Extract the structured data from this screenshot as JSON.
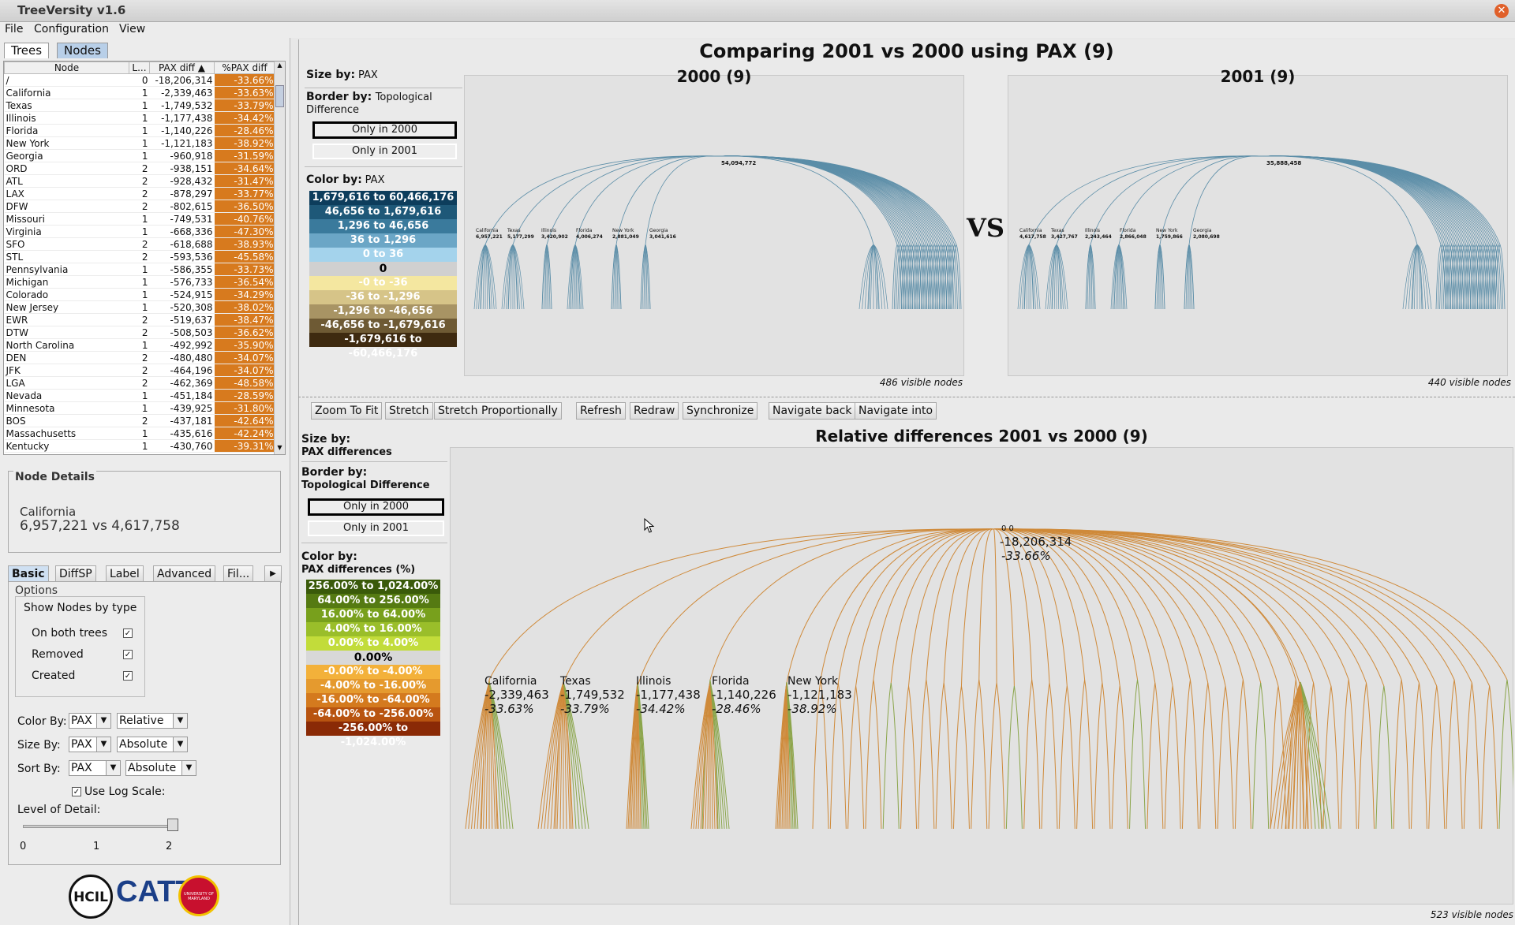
{
  "window": {
    "title": "TreeVersity v1.6"
  },
  "menu": [
    "File",
    "Configuration",
    "View"
  ],
  "left_tabs": [
    "Trees",
    "Nodes"
  ],
  "table": {
    "headers": [
      "Node",
      "L...",
      "PAX diff",
      "%PAX diff"
    ],
    "rows": [
      [
        "/",
        "0",
        "-18,206,314",
        "-33.66%"
      ],
      [
        "California",
        "1",
        "-2,339,463",
        "-33.63%"
      ],
      [
        "Texas",
        "1",
        "-1,749,532",
        "-33.79%"
      ],
      [
        "Illinois",
        "1",
        "-1,177,438",
        "-34.42%"
      ],
      [
        "Florida",
        "1",
        "-1,140,226",
        "-28.46%"
      ],
      [
        "New York",
        "1",
        "-1,121,183",
        "-38.92%"
      ],
      [
        "Georgia",
        "1",
        "-960,918",
        "-31.59%"
      ],
      [
        "ORD",
        "2",
        "-938,151",
        "-34.64%"
      ],
      [
        "ATL",
        "2",
        "-928,432",
        "-31.47%"
      ],
      [
        "LAX",
        "2",
        "-878,297",
        "-33.77%"
      ],
      [
        "DFW",
        "2",
        "-802,615",
        "-36.50%"
      ],
      [
        "Missouri",
        "1",
        "-749,531",
        "-40.76%"
      ],
      [
        "Virginia",
        "1",
        "-668,336",
        "-47.30%"
      ],
      [
        "SFO",
        "2",
        "-618,688",
        "-38.93%"
      ],
      [
        "STL",
        "2",
        "-593,536",
        "-45.58%"
      ],
      [
        "Pennsylvania",
        "1",
        "-586,355",
        "-33.73%"
      ],
      [
        "Michigan",
        "1",
        "-576,733",
        "-36.54%"
      ],
      [
        "Colorado",
        "1",
        "-524,915",
        "-34.29%"
      ],
      [
        "New Jersey",
        "1",
        "-520,308",
        "-38.02%"
      ],
      [
        "EWR",
        "2",
        "-519,637",
        "-38.47%"
      ],
      [
        "DTW",
        "2",
        "-508,503",
        "-36.62%"
      ],
      [
        "North Carolina",
        "1",
        "-492,992",
        "-35.90%"
      ],
      [
        "DEN",
        "2",
        "-480,480",
        "-34.07%"
      ],
      [
        "JFK",
        "2",
        "-464,196",
        "-34.07%"
      ],
      [
        "LGA",
        "2",
        "-462,369",
        "-48.58%"
      ],
      [
        "Nevada",
        "1",
        "-451,184",
        "-28.59%"
      ],
      [
        "Minnesota",
        "1",
        "-439,925",
        "-31.80%"
      ],
      [
        "BOS",
        "2",
        "-437,181",
        "-42.64%"
      ],
      [
        "Massachusetts",
        "1",
        "-435,616",
        "-42.24%"
      ],
      [
        "Kentucky",
        "1",
        "-430,760",
        "-39.31%"
      ]
    ]
  },
  "node_details": {
    "title": "Node Details",
    "name": "California",
    "value": "6,957,221 vs 4,617,758"
  },
  "options_tabs": [
    "Basic",
    "DiffSP",
    "Label",
    "Advanced",
    "Fil..."
  ],
  "options": {
    "group_title": "Options",
    "show_nodes_title": "Show Nodes by type",
    "checks": [
      {
        "label": "On both trees",
        "checked": true
      },
      {
        "label": "Removed",
        "checked": true
      },
      {
        "label": "Created",
        "checked": true
      }
    ],
    "color_by_label": "Color By:",
    "color_by_attr": "PAX",
    "color_by_mode": "Relative",
    "size_by_label": "Size By:",
    "size_by_attr": "PAX",
    "size_by_mode": "Absolute",
    "sort_by_label": "Sort By:",
    "sort_by_attr": "PAX",
    "sort_by_mode": "Absolute",
    "log_scale_label": "Use Log Scale:",
    "log_scale": true,
    "lod_label": "Level of Detail:",
    "lod_ticks": [
      "0",
      "1",
      "2"
    ],
    "lod_value": 2
  },
  "logos": [
    "HCIL",
    "CATT",
    "UNIVERSITY OF MARYLAND"
  ],
  "comparison": {
    "title": "Comparing 2001 vs 2000 using PAX (9)",
    "size_by": "Size by:",
    "size_by_value": "PAX",
    "border_by": "Border by:",
    "border_by_value": "Topological Difference",
    "only_in_2000": "Only in 2000",
    "only_in_2001": "Only in 2001",
    "color_by": "Color by:",
    "color_by_value": "PAX",
    "legend": [
      {
        "label": "1,679,616 to 60,466,176",
        "color": "#0d3d5c",
        "text": "#fff"
      },
      {
        "label": "46,656 to 1,679,616",
        "color": "#1e5878",
        "text": "#fff"
      },
      {
        "label": "1,296 to 46,656",
        "color": "#3a7a9c",
        "text": "#fff"
      },
      {
        "label": "36 to 1,296",
        "color": "#6ba6c6",
        "text": "#fff"
      },
      {
        "label": "0 to 36",
        "color": "#a4d3ec",
        "text": "#fff"
      },
      {
        "label": "0",
        "color": "#d0d0d0",
        "text": "#000"
      },
      {
        "label": "-0 to -36",
        "color": "#f4e7a0",
        "text": "#fff"
      },
      {
        "label": "-36 to -1,296",
        "color": "#d6c488",
        "text": "#fff"
      },
      {
        "label": "-1,296 to -46,656",
        "color": "#a89464",
        "text": "#fff"
      },
      {
        "label": "-46,656 to -1,679,616",
        "color": "#6e5a34",
        "text": "#fff"
      },
      {
        "label": "-1,679,616 to -60,466,176",
        "color": "#3e2a10",
        "text": "#fff"
      }
    ],
    "vs": "VS",
    "left_tree": {
      "title": "2000 (9)",
      "root": "54,094,772",
      "labels": [
        [
          "California",
          "6,957,221"
        ],
        [
          "Texas",
          "5,177,299"
        ],
        [
          "Illinois",
          "3,420,902"
        ],
        [
          "Florida",
          "4,006,274"
        ],
        [
          "New York",
          "2,881,049"
        ],
        [
          "Georgia",
          "3,041,616"
        ]
      ],
      "visible": "486 visible nodes"
    },
    "right_tree": {
      "title": "2001 (9)",
      "root": "35,888,458",
      "labels": [
        [
          "California",
          "4,617,758"
        ],
        [
          "Texas",
          "3,427,767"
        ],
        [
          "Illinois",
          "2,243,464"
        ],
        [
          "Florida",
          "2,866,048"
        ],
        [
          "New York",
          "1,759,866"
        ],
        [
          "Georgia",
          "2,080,698"
        ]
      ],
      "visible": "440 visible nodes"
    }
  },
  "toolbar": [
    "Zoom To Fit",
    "Stretch",
    "Stretch Proportionally",
    "Refresh",
    "Redraw",
    "Synchronize",
    "Navigate back",
    "Navigate into"
  ],
  "diff": {
    "title": "Relative differences 2001 vs 2000 (9)",
    "size_by": "Size by:",
    "size_by_value": "PAX differences",
    "border_by": "Border by:",
    "border_by_value": "Topological Difference",
    "only_in_2000": "Only in 2000",
    "only_in_2001": "Only in 2001",
    "color_by": "Color by:",
    "color_by_value": "PAX differences (%)",
    "legend": [
      {
        "label": "256.00% to 1,024.00%",
        "color": "#3a5a0a",
        "text": "#fff"
      },
      {
        "label": "64.00% to 256.00%",
        "color": "#557a12",
        "text": "#fff"
      },
      {
        "label": "16.00% to 64.00%",
        "color": "#78a01c",
        "text": "#fff"
      },
      {
        "label": "4.00% to 16.00%",
        "color": "#9abe2a",
        "text": "#fff"
      },
      {
        "label": "0.00% to 4.00%",
        "color": "#c2dc3a",
        "text": "#fff"
      },
      {
        "label": "0.00%",
        "color": "#d8d8d8",
        "text": "#000"
      },
      {
        "label": "-0.00% to -4.00%",
        "color": "#f3b13a",
        "text": "#fff"
      },
      {
        "label": "-4.00% to -16.00%",
        "color": "#e59a2e",
        "text": "#fff"
      },
      {
        "label": "-16.00% to -64.00%",
        "color": "#d47a1e",
        "text": "#fff"
      },
      {
        "label": "-64.00% to -256.00%",
        "color": "#b85410",
        "text": "#fff"
      },
      {
        "label": "-256.00% to -1,024.00%",
        "color": "#8a2a06",
        "text": "#fff"
      }
    ],
    "root_label": "0 0",
    "root_value": "-18,206,314",
    "root_pct": "-33.66%",
    "labels": [
      [
        "California",
        "-2,339,463",
        "-33.63%"
      ],
      [
        "Texas",
        "-1,749,532",
        "-33.79%"
      ],
      [
        "Illinois",
        "-1,177,438",
        "-34.42%"
      ],
      [
        "Florida",
        "-1,140,226",
        "-28.46%"
      ],
      [
        "New York",
        "-1,121,183",
        "-38.92%"
      ]
    ],
    "visible": "523 visible nodes"
  }
}
